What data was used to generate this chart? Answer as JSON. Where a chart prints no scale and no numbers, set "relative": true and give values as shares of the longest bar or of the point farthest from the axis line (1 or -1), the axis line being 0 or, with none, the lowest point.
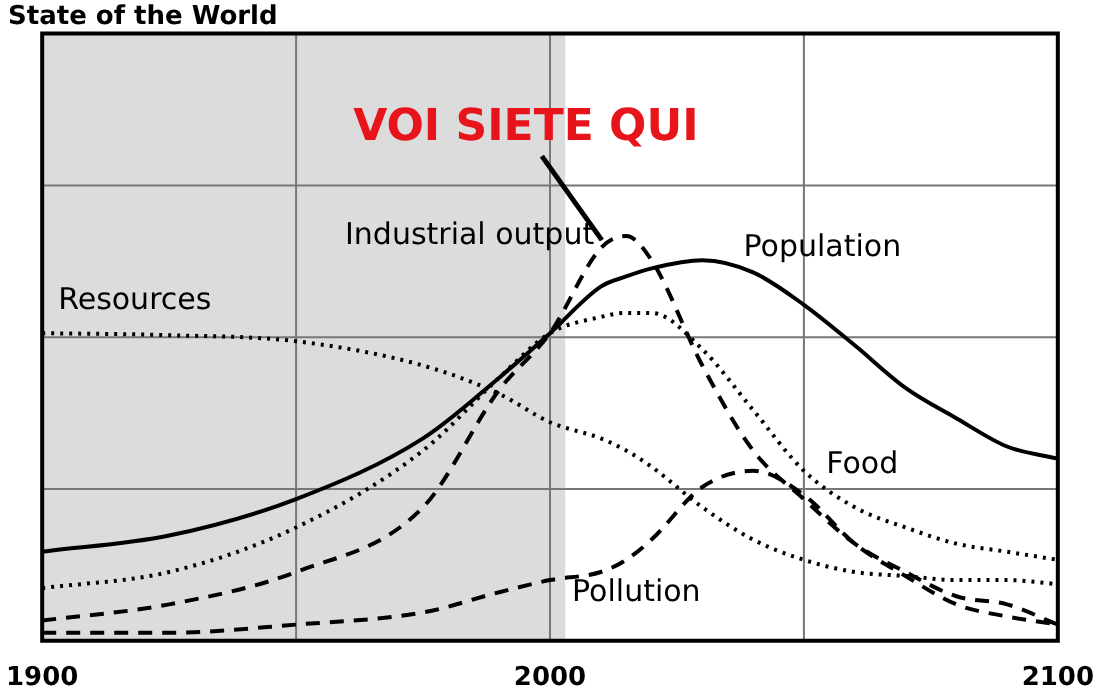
{
  "chart_data": {
    "type": "line",
    "title": "State of the World",
    "relative": true,
    "x": [
      1900,
      1925,
      1950,
      1975,
      1990,
      2000,
      2010,
      2015,
      2020,
      2030,
      2040,
      2050,
      2060,
      2070,
      2080,
      2090,
      2100
    ],
    "xlim": [
      1900,
      2100
    ],
    "xticks": [
      1900,
      {
        "value": 1950,
        "label": null
      },
      2000,
      {
        "value": 2050,
        "label": null
      },
      2100
    ],
    "series": [
      {
        "name": "Resources",
        "color": "#000000",
        "line_style": "dotted",
        "values": [
          0.76,
          0.755,
          0.74,
          0.68,
          0.61,
          0.54,
          0.5,
          0.47,
          0.43,
          0.33,
          0.25,
          0.2,
          0.17,
          0.16,
          0.15,
          0.15,
          0.14
        ]
      },
      {
        "name": "Industrial output",
        "color": "#000000",
        "line_style": "dashed",
        "values": [
          0.05,
          0.09,
          0.17,
          0.33,
          0.62,
          0.76,
          0.97,
          1,
          0.94,
          0.68,
          0.47,
          0.35,
          0.24,
          0.17,
          0.11,
          0.09,
          0.04
        ]
      },
      {
        "name": "Population",
        "color": "#000000",
        "line_style": "solid",
        "values": [
          0.22,
          0.26,
          0.35,
          0.5,
          0.65,
          0.76,
          0.875,
          0.9,
          0.92,
          0.94,
          0.91,
          0.83,
          0.73,
          0.625,
          0.55,
          0.48,
          0.45
        ]
      },
      {
        "name": "Food",
        "color": "#000000",
        "line_style": "dotted",
        "values": [
          0.13,
          0.17,
          0.28,
          0.47,
          0.65,
          0.76,
          0.8,
          0.81,
          0.81,
          0.72,
          0.57,
          0.42,
          0.33,
          0.28,
          0.24,
          0.22,
          0.2
        ]
      },
      {
        "name": "Pollution",
        "color": "#000000",
        "line_style": "dashed",
        "values": [
          0.02,
          0.02,
          0.04,
          0.07,
          0.12,
          0.15,
          0.17,
          0.2,
          0.25,
          0.38,
          0.42,
          0.36,
          0.24,
          0.16,
          0.09,
          0.06,
          0.04
        ]
      }
    ],
    "bands": [
      {
        "axis": "x",
        "from": 1900,
        "to": 2003,
        "color": "#dcdcdc"
      }
    ],
    "annotations": [
      {
        "text": "VOI SIETE QUI",
        "x": 2011,
        "y": 0.97
      }
    ],
    "grid": true,
    "legend": false,
    "marker": "none"
  }
}
